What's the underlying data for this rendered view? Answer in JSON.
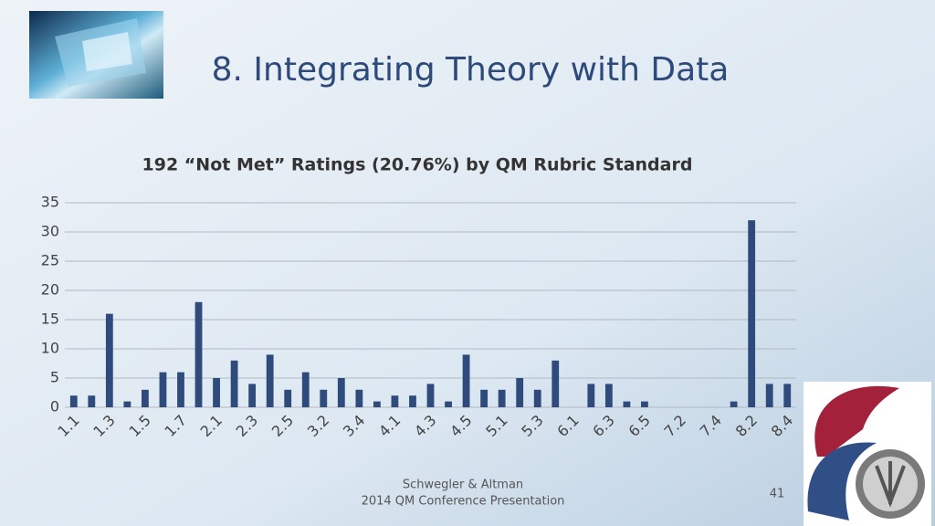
{
  "slide": {
    "title": "8. Integrating Theory with Data",
    "footer": [
      "Schwegler & Altman",
      "2014 QM Conference Presentation"
    ],
    "page_number": "41"
  },
  "chart_data": {
    "type": "bar",
    "title": "192 “Not Met” Ratings (20.76%) by QM Rubric Standard",
    "categories": [
      "1.1",
      null,
      "1.3",
      null,
      "1.5",
      null,
      "1.7",
      null,
      "2.1",
      null,
      "2.3",
      null,
      "2.5",
      null,
      "3.2",
      null,
      "3.4",
      null,
      "4.1",
      null,
      "4.3",
      null,
      "4.5",
      null,
      "5.1",
      null,
      "5.3",
      null,
      "6.1",
      null,
      "6.3",
      null,
      "6.5",
      null,
      "7.2",
      null,
      "7.4",
      null,
      "8.2",
      null,
      "8.4"
    ],
    "values": [
      2,
      2,
      16,
      1,
      3,
      6,
      6,
      18,
      5,
      8,
      4,
      9,
      3,
      6,
      3,
      5,
      3,
      1,
      2,
      2,
      4,
      1,
      9,
      3,
      3,
      5,
      3,
      8,
      0,
      4,
      4,
      1,
      1,
      0,
      0,
      0,
      0,
      1,
      32,
      4,
      4
    ],
    "color": "#2f4b7c",
    "ylim": [
      0,
      35
    ],
    "yticks": [
      0,
      5,
      10,
      15,
      20,
      25,
      30,
      35
    ],
    "grid": true
  }
}
